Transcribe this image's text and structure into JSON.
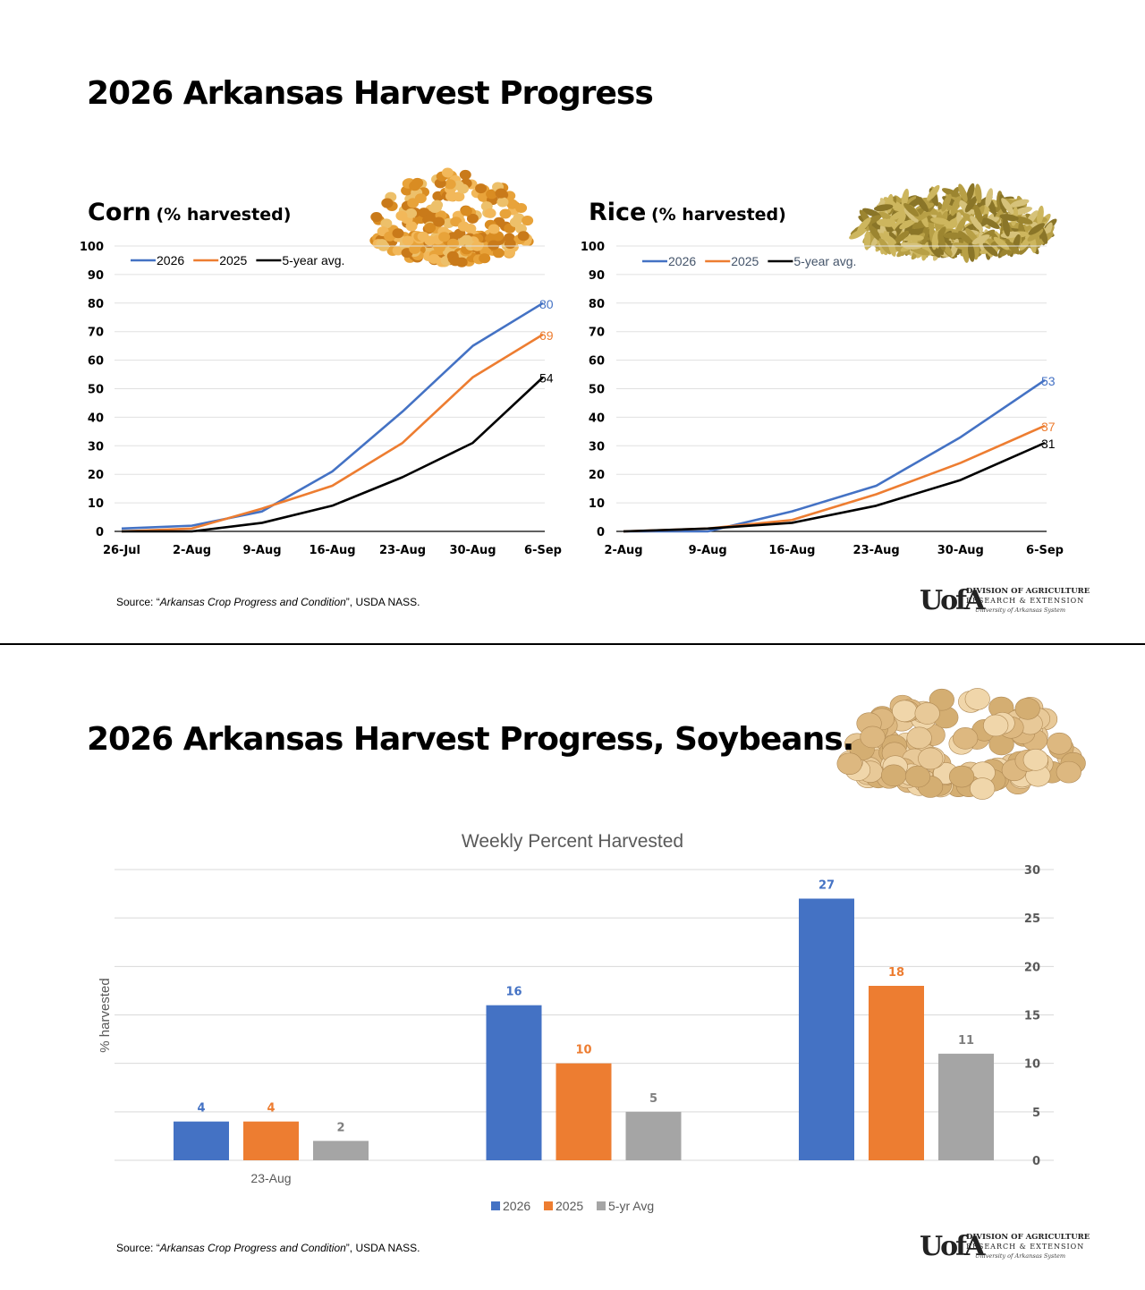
{
  "slide1": {
    "title": "2026 Arkansas Harvest Progress",
    "source_prefix": "Source: “",
    "source_italic": "Arkansas Crop Progress and Condition",
    "source_suffix": "”, USDA NASS."
  },
  "slide2": {
    "title": "2026 Arkansas Harvest Progress, Soybeans.",
    "source_prefix": "Source: “",
    "source_italic": "Arkansas Crop Progress and Condition",
    "source_suffix": "”, USDA NASS."
  },
  "logo": {
    "mark": "UofA",
    "line1": "DIVISION OF AGRICULTURE",
    "line2": "RESEARCH & EXTENSION",
    "line3": "University of Arkansas System"
  },
  "colors": {
    "y2026": "#4472C4",
    "y2025": "#ED7D31",
    "avg": "#000000",
    "avg_bar": "#A5A5A5",
    "grid": "#d9d9d9"
  },
  "chart_data": [
    {
      "type": "line",
      "title": "Corn",
      "subtitle": "(% harvested)",
      "x": [
        "26-Jul",
        "2-Aug",
        "9-Aug",
        "16-Aug",
        "23-Aug",
        "30-Aug",
        "6-Sep"
      ],
      "ylim": [
        0,
        100
      ],
      "yticks": [
        0,
        10,
        20,
        30,
        40,
        50,
        60,
        70,
        80,
        90,
        100
      ],
      "grid": true,
      "legend": "top-left",
      "series": [
        {
          "name": "2026",
          "color": "#4472C4",
          "values": [
            1,
            2,
            7,
            21,
            42,
            65,
            80
          ],
          "end_label": "80"
        },
        {
          "name": "2025",
          "color": "#ED7D31",
          "values": [
            0,
            1,
            8,
            16,
            31,
            54,
            69
          ],
          "end_label": "69"
        },
        {
          "name": "5-year avg.",
          "color": "#000000",
          "values": [
            0,
            0,
            3,
            9,
            19,
            31,
            54
          ],
          "end_label": "54"
        }
      ]
    },
    {
      "type": "line",
      "title": "Rice",
      "subtitle": "(% harvested)",
      "x": [
        "2-Aug",
        "9-Aug",
        "16-Aug",
        "23-Aug",
        "30-Aug",
        "6-Sep"
      ],
      "ylim": [
        0,
        100
      ],
      "yticks": [
        0,
        10,
        20,
        30,
        40,
        50,
        60,
        70,
        80,
        90,
        100
      ],
      "grid": true,
      "legend": "top-left",
      "series": [
        {
          "name": "2026",
          "color": "#4472C4",
          "values": [
            0,
            0,
            7,
            16,
            33,
            53
          ],
          "end_label": "53"
        },
        {
          "name": "2025",
          "color": "#ED7D31",
          "values": [
            0,
            1,
            4,
            13,
            24,
            37
          ],
          "end_label": "37"
        },
        {
          "name": "5-year avg.",
          "color": "#000000",
          "values": [
            0,
            1,
            3,
            9,
            18,
            31
          ],
          "end_label": "31"
        }
      ]
    },
    {
      "type": "bar",
      "title": "Weekly Percent Harvested",
      "ylabel": "% harvested",
      "categories": [
        "23-Aug",
        "",
        ""
      ],
      "ylim": [
        0,
        30
      ],
      "yticks": [
        0,
        5,
        10,
        15,
        20,
        25,
        30
      ],
      "grid": true,
      "legend": "bottom",
      "series": [
        {
          "name": "2026",
          "color": "#4472C4",
          "label_color": "#4472C4",
          "values": [
            4,
            16,
            27
          ]
        },
        {
          "name": "2025",
          "color": "#ED7D31",
          "label_color": "#ED7D31",
          "values": [
            4,
            10,
            18
          ]
        },
        {
          "name": "5-yr Avg",
          "color": "#A5A5A5",
          "label_color": "#7F7F7F",
          "values": [
            2,
            5,
            11
          ]
        }
      ]
    }
  ]
}
